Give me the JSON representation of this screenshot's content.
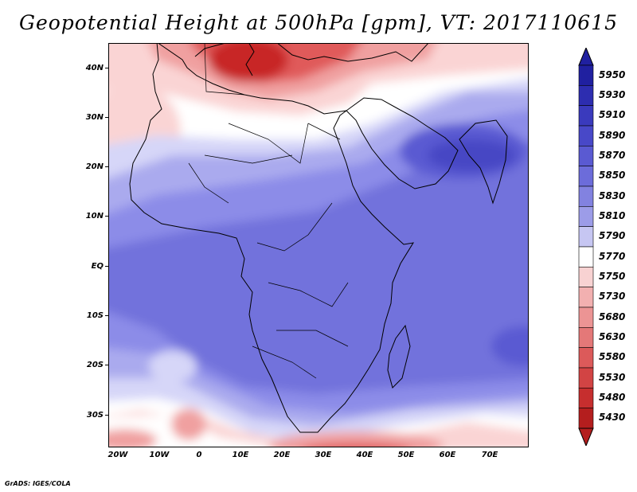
{
  "title": "Geopotential Height at 500hPa [gpm], VT: 2017110615",
  "credit": "GrADS: IGES/COLA",
  "map": {
    "lat_labels": [
      "40N",
      "30N",
      "20N",
      "10N",
      "EQ",
      "10S",
      "20S",
      "30S"
    ],
    "lon_labels": [
      "20W",
      "10W",
      "0",
      "10E",
      "20E",
      "30E",
      "40E",
      "50E",
      "60E",
      "70E"
    ],
    "colors": {
      "background_field": "#7272dc",
      "deep_red": "#c82828",
      "red": "#e05a5a",
      "light_red": "#f0a0a0",
      "pale_red": "#fad4d4",
      "white": "#ffffff",
      "pale_blue": "#d6d6f8",
      "light_blue": "#aaaaee",
      "mid_blue": "#8c8ce8",
      "blue": "#6a6ad8",
      "dark_blue": "#4646c4",
      "coast": "#000000"
    }
  },
  "colorbar": {
    "levels": [
      "5950",
      "5930",
      "5910",
      "5890",
      "5870",
      "5850",
      "5830",
      "5810",
      "5790",
      "5770",
      "5750",
      "5730",
      "5680",
      "5630",
      "5580",
      "5530",
      "5480",
      "5430"
    ],
    "colors": [
      "#2020a0",
      "#2d2db0",
      "#3a3abd",
      "#4848c8",
      "#5a5ad2",
      "#6c6cda",
      "#8282e0",
      "#9c9ce8",
      "#c6c6f2",
      "#ffffff",
      "#f8d2d2",
      "#f2b0b0",
      "#ec9494",
      "#e47878",
      "#dc5a5a",
      "#d24444",
      "#c62e2e",
      "#b41e1e"
    ]
  }
}
